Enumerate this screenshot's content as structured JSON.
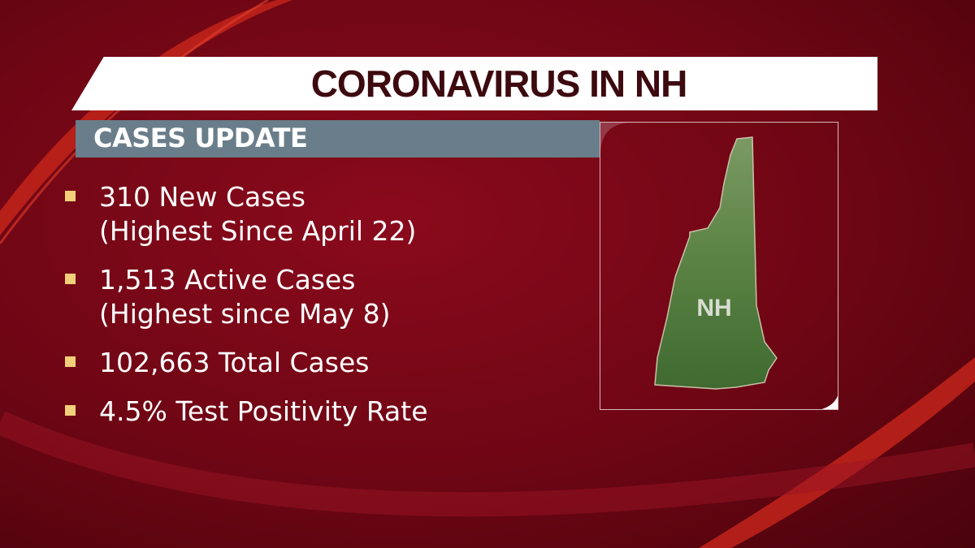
{
  "header": {
    "title": "CORONAVIRUS IN NH"
  },
  "subheader": {
    "label": "CASES UPDATE"
  },
  "bullets": [
    {
      "line1": "310 New Cases",
      "line2": "(Highest Since April 22)"
    },
    {
      "line1": "1,513 Active Cases",
      "line2": "(Highest since May 8)"
    },
    {
      "line1": "102,663 Total Cases"
    },
    {
      "line1": "4.5% Test Positivity Rate"
    }
  ],
  "map": {
    "label": "NH",
    "icon": "new-hampshire-map"
  },
  "colors": {
    "background": "#7a0816",
    "subheader": "#6a7d8a",
    "bullet": "#f2cf7a",
    "title_text": "#3d0a10",
    "map_fill": "#4f7a3a"
  }
}
